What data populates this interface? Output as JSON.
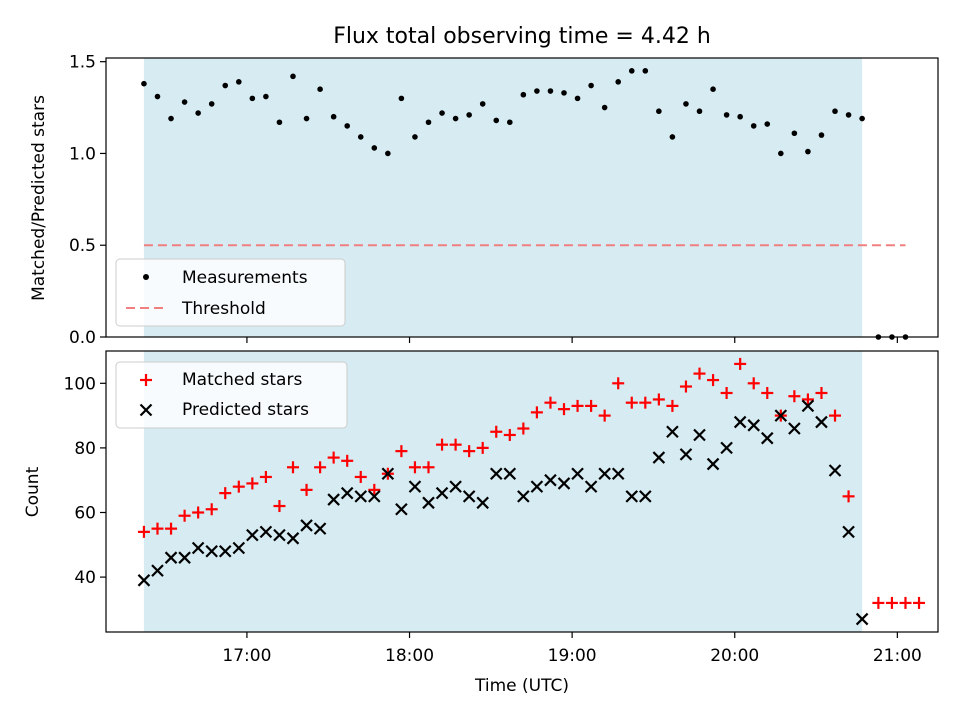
{
  "title": "Flux total observing time = 4.42 h",
  "colors": {
    "shade": "#add8e6",
    "measurement": "#000000",
    "threshold": "#f08080",
    "matched": "#ff0000",
    "predicted": "#000000"
  },
  "chart_data": [
    {
      "type": "scatter",
      "ylabel": "Matched/Predicted stars",
      "ylim": [
        0,
        1.52
      ],
      "yticks": [
        0.0,
        0.5,
        1.0,
        1.5
      ],
      "ytick_labels": [
        "0.0",
        "0.5",
        "1.0",
        "1.5"
      ],
      "shaded_span": [
        "16:22",
        "20:47"
      ],
      "legend": {
        "position": "lower-left",
        "entries": [
          "Measurements",
          "Threshold"
        ]
      },
      "threshold": {
        "name": "Threshold",
        "y": 0.5,
        "x": [
          "16:22",
          "21:03"
        ]
      },
      "series": [
        {
          "name": "Measurements",
          "points": [
            [
              "16:22",
              1.38
            ],
            [
              "16:27",
              1.31
            ],
            [
              "16:32",
              1.19
            ],
            [
              "16:37",
              1.28
            ],
            [
              "16:42",
              1.22
            ],
            [
              "16:47",
              1.27
            ],
            [
              "16:52",
              1.37
            ],
            [
              "16:57",
              1.39
            ],
            [
              "17:02",
              1.3
            ],
            [
              "17:07",
              1.31
            ],
            [
              "17:12",
              1.17
            ],
            [
              "17:17",
              1.42
            ],
            [
              "17:22",
              1.19
            ],
            [
              "17:27",
              1.35
            ],
            [
              "17:32",
              1.2
            ],
            [
              "17:37",
              1.15
            ],
            [
              "17:42",
              1.09
            ],
            [
              "17:47",
              1.03
            ],
            [
              "17:52",
              1.0
            ],
            [
              "17:57",
              1.3
            ],
            [
              "18:02",
              1.09
            ],
            [
              "18:07",
              1.17
            ],
            [
              "18:12",
              1.22
            ],
            [
              "18:17",
              1.19
            ],
            [
              "18:22",
              1.21
            ],
            [
              "18:27",
              1.27
            ],
            [
              "18:32",
              1.18
            ],
            [
              "18:37",
              1.17
            ],
            [
              "18:42",
              1.32
            ],
            [
              "18:47",
              1.34
            ],
            [
              "18:52",
              1.34
            ],
            [
              "18:57",
              1.33
            ],
            [
              "19:02",
              1.3
            ],
            [
              "19:07",
              1.37
            ],
            [
              "19:12",
              1.25
            ],
            [
              "19:17",
              1.39
            ],
            [
              "19:22",
              1.45
            ],
            [
              "19:27",
              1.45
            ],
            [
              "19:32",
              1.23
            ],
            [
              "19:37",
              1.09
            ],
            [
              "19:42",
              1.27
            ],
            [
              "19:47",
              1.23
            ],
            [
              "19:52",
              1.35
            ],
            [
              "19:57",
              1.21
            ],
            [
              "20:02",
              1.2
            ],
            [
              "20:07",
              1.15
            ],
            [
              "20:12",
              1.16
            ],
            [
              "20:17",
              1.0
            ],
            [
              "20:22",
              1.11
            ],
            [
              "20:27",
              1.01
            ],
            [
              "20:32",
              1.1
            ],
            [
              "20:37",
              1.23
            ],
            [
              "20:42",
              1.21
            ],
            [
              "20:47",
              1.19
            ],
            [
              "20:53",
              0.0
            ],
            [
              "20:58",
              0.0
            ],
            [
              "21:03",
              0.0
            ]
          ]
        }
      ]
    },
    {
      "type": "scatter",
      "xlabel": "Time (UTC)",
      "ylabel": "Count",
      "ylim": [
        23,
        110
      ],
      "yticks": [
        40,
        60,
        80,
        100
      ],
      "ytick_labels": [
        "40",
        "60",
        "80",
        "100"
      ],
      "xticks": [
        "17:00",
        "18:00",
        "19:00",
        "20:00",
        "21:00"
      ],
      "xlim": [
        "16:08",
        "21:15"
      ],
      "shaded_span": [
        "16:22",
        "20:47"
      ],
      "legend": {
        "position": "upper-left",
        "entries": [
          "Matched stars",
          "Predicted stars"
        ]
      },
      "series": [
        {
          "name": "Matched stars",
          "points": [
            [
              "16:22",
              54
            ],
            [
              "16:27",
              55
            ],
            [
              "16:32",
              55
            ],
            [
              "16:37",
              59
            ],
            [
              "16:42",
              60
            ],
            [
              "16:47",
              61
            ],
            [
              "16:52",
              66
            ],
            [
              "16:57",
              68
            ],
            [
              "17:02",
              69
            ],
            [
              "17:07",
              71
            ],
            [
              "17:12",
              62
            ],
            [
              "17:17",
              74
            ],
            [
              "17:22",
              67
            ],
            [
              "17:27",
              74
            ],
            [
              "17:32",
              77
            ],
            [
              "17:37",
              76
            ],
            [
              "17:42",
              71
            ],
            [
              "17:47",
              67
            ],
            [
              "17:52",
              72
            ],
            [
              "17:57",
              79
            ],
            [
              "18:02",
              74
            ],
            [
              "18:07",
              74
            ],
            [
              "18:12",
              81
            ],
            [
              "18:17",
              81
            ],
            [
              "18:22",
              79
            ],
            [
              "18:27",
              80
            ],
            [
              "18:32",
              85
            ],
            [
              "18:37",
              84
            ],
            [
              "18:42",
              86
            ],
            [
              "18:47",
              91
            ],
            [
              "18:52",
              94
            ],
            [
              "18:57",
              92
            ],
            [
              "19:02",
              93
            ],
            [
              "19:07",
              93
            ],
            [
              "19:12",
              90
            ],
            [
              "19:17",
              100
            ],
            [
              "19:22",
              94
            ],
            [
              "19:27",
              94
            ],
            [
              "19:32",
              95
            ],
            [
              "19:37",
              93
            ],
            [
              "19:42",
              99
            ],
            [
              "19:47",
              103
            ],
            [
              "19:52",
              101
            ],
            [
              "19:57",
              97
            ],
            [
              "20:02",
              106
            ],
            [
              "20:07",
              100
            ],
            [
              "20:12",
              97
            ],
            [
              "20:17",
              90
            ],
            [
              "20:22",
              96
            ],
            [
              "20:27",
              95
            ],
            [
              "20:32",
              97
            ],
            [
              "20:37",
              90
            ],
            [
              "20:42",
              65
            ],
            [
              "20:53",
              32
            ],
            [
              "20:58",
              32
            ],
            [
              "21:03",
              32
            ],
            [
              "21:08",
              32
            ]
          ]
        },
        {
          "name": "Predicted stars",
          "points": [
            [
              "16:22",
              39
            ],
            [
              "16:27",
              42
            ],
            [
              "16:32",
              46
            ],
            [
              "16:37",
              46
            ],
            [
              "16:42",
              49
            ],
            [
              "16:47",
              48
            ],
            [
              "16:52",
              48
            ],
            [
              "16:57",
              49
            ],
            [
              "17:02",
              53
            ],
            [
              "17:07",
              54
            ],
            [
              "17:12",
              53
            ],
            [
              "17:17",
              52
            ],
            [
              "17:22",
              56
            ],
            [
              "17:27",
              55
            ],
            [
              "17:32",
              64
            ],
            [
              "17:37",
              66
            ],
            [
              "17:42",
              65
            ],
            [
              "17:47",
              65
            ],
            [
              "17:52",
              72
            ],
            [
              "17:57",
              61
            ],
            [
              "18:02",
              68
            ],
            [
              "18:07",
              63
            ],
            [
              "18:12",
              66
            ],
            [
              "18:17",
              68
            ],
            [
              "18:22",
              65
            ],
            [
              "18:27",
              63
            ],
            [
              "18:32",
              72
            ],
            [
              "18:37",
              72
            ],
            [
              "18:42",
              65
            ],
            [
              "18:47",
              68
            ],
            [
              "18:52",
              70
            ],
            [
              "18:57",
              69
            ],
            [
              "19:02",
              72
            ],
            [
              "19:07",
              68
            ],
            [
              "19:12",
              72
            ],
            [
              "19:17",
              72
            ],
            [
              "19:22",
              65
            ],
            [
              "19:27",
              65
            ],
            [
              "19:32",
              77
            ],
            [
              "19:37",
              85
            ],
            [
              "19:42",
              78
            ],
            [
              "19:47",
              84
            ],
            [
              "19:52",
              75
            ],
            [
              "19:57",
              80
            ],
            [
              "20:02",
              88
            ],
            [
              "20:07",
              87
            ],
            [
              "20:12",
              83
            ],
            [
              "20:17",
              90
            ],
            [
              "20:22",
              86
            ],
            [
              "20:27",
              93
            ],
            [
              "20:32",
              88
            ],
            [
              "20:37",
              73
            ],
            [
              "20:42",
              54
            ],
            [
              "20:47",
              27
            ]
          ]
        }
      ]
    }
  ]
}
